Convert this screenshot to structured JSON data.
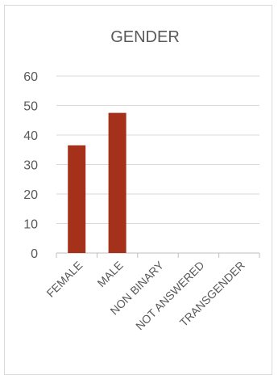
{
  "chart_data": {
    "type": "bar",
    "title": "GENDER",
    "categories": [
      "FEMALE",
      "MALE",
      "NON BINARY",
      "NOT ANSWERED",
      "TRANSGENDER"
    ],
    "values": [
      36.5,
      47.5,
      0,
      0,
      0
    ],
    "ylim": [
      0,
      60
    ],
    "yticks": [
      0,
      10,
      20,
      30,
      40,
      50,
      60
    ],
    "grid": true,
    "legend": "none",
    "bar_color": "#a5311a"
  }
}
